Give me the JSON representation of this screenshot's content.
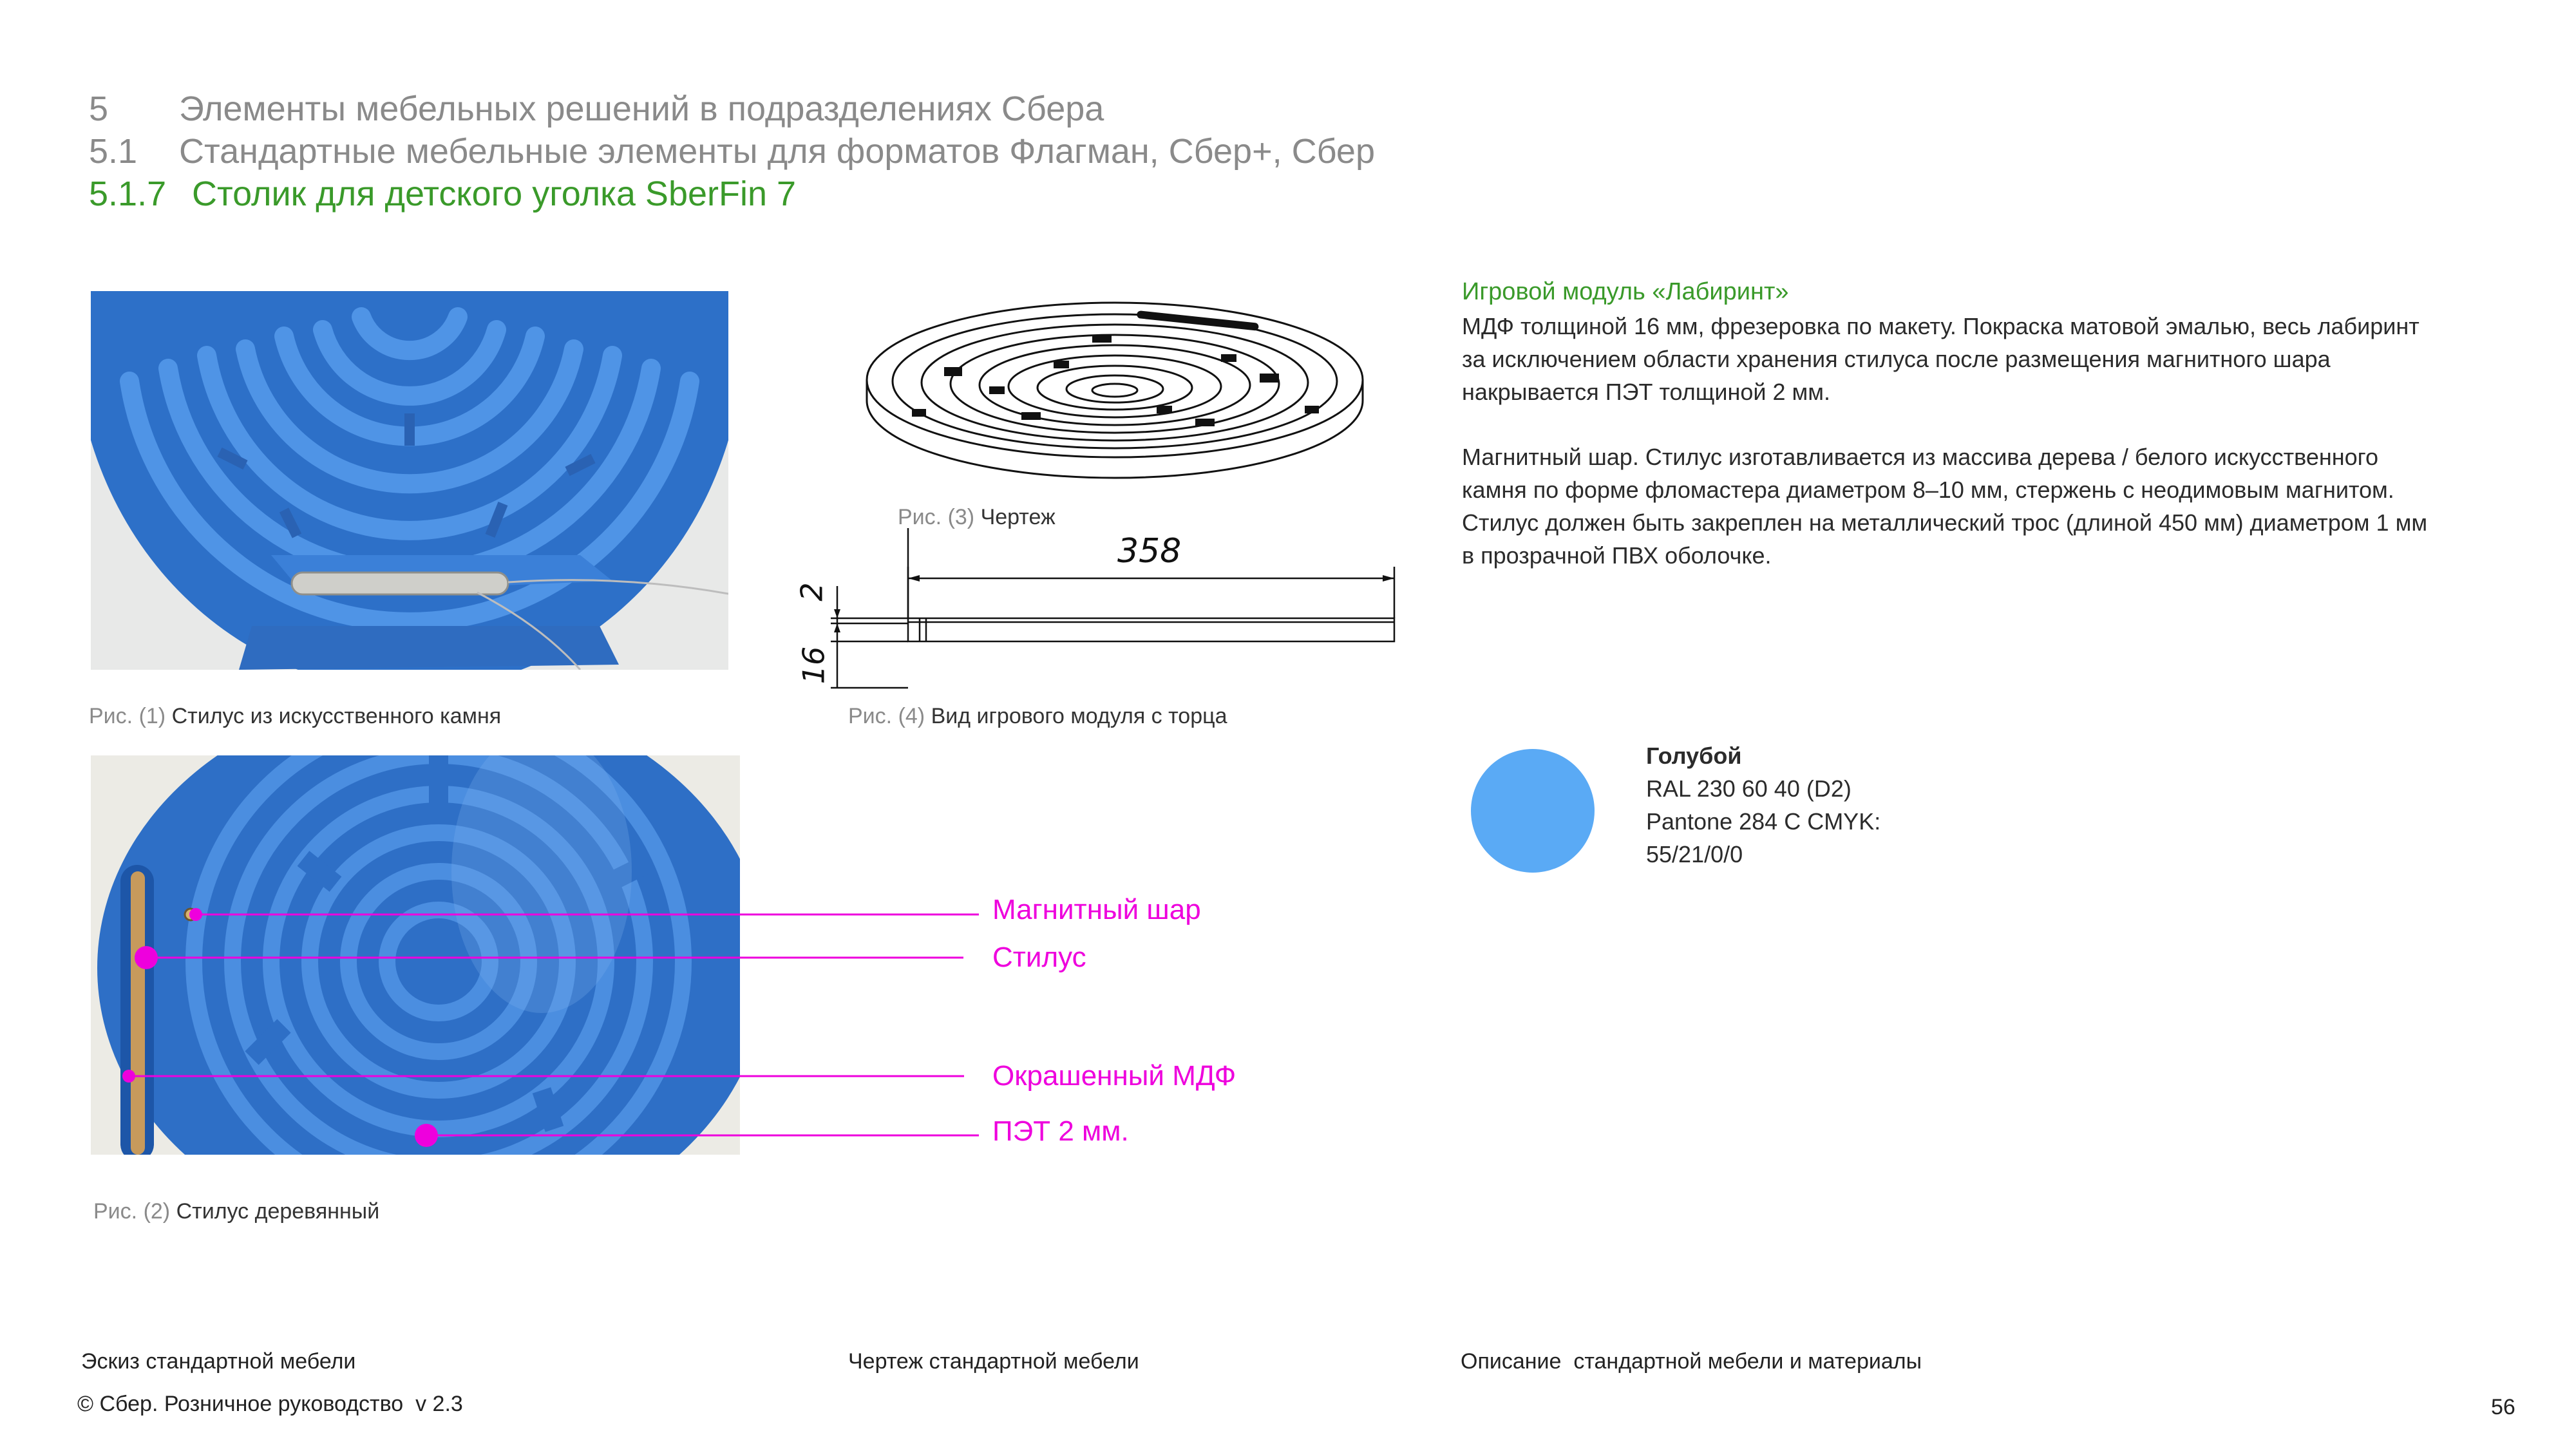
{
  "header": {
    "line1": {
      "num": "5",
      "text": "Элементы мебельных решений в подразделениях Сбера"
    },
    "line2": {
      "num": "5.1",
      "text": "Стандартные мебельные элементы для форматов Флагман, Сбер+, Сбер"
    },
    "line3": {
      "num": "5.1.7",
      "text": "Столик для детского уголка SberFin 7"
    }
  },
  "figures": {
    "fig1": {
      "prefix": "Рис. (1)",
      "caption": "Стилус из искусственного камня"
    },
    "fig2": {
      "prefix": "Рис. (2)",
      "caption": "Стилус деревянный"
    },
    "fig3": {
      "prefix": "Рис. (3)",
      "caption": "Чертеж"
    },
    "fig4": {
      "prefix": "Рис. (4)",
      "caption": "Вид игрового модуля с торца"
    }
  },
  "drawing": {
    "dim_width": "358",
    "dim_top": "2",
    "dim_thickness": "16"
  },
  "callouts": {
    "magnet": "Магнитный шар",
    "stylus": "Стилус",
    "mdf": "Окрашенный МДФ",
    "pet": "ПЭТ 2 мм."
  },
  "description": {
    "title": "Игровой модуль «Лабиринт»",
    "para1": "МДФ толщиной 16 мм, фрезеровка по макету. Покраска матовой эмалью, весь лабиринт за исключением области хранения стилуса после размещения магнитного шара накрывается ПЭТ толщиной 2 мм.",
    "para2": "Магнитный шар. Стилус изготавливается из массива дерева / белого искусственного камня по форме фломастера диаметром 8–10 мм, стержень с неодимовым магнитом. Стилус должен быть закреплен на металлический трос (длиной 450 мм) диаметром 1 мм в прозрачной ПВХ оболочке."
  },
  "color_swatch": {
    "name": "Голубой",
    "ral": "RAL 230 60 40 (D2)",
    "pantone": "Pantone 284 C CMYK:",
    "cmyk": "55/21/0/0",
    "hex": "#5aaaf5"
  },
  "footer": {
    "col1": "Эскиз стандартной мебели",
    "col2": "Чертеж стандартной мебели",
    "col3": "Описание  стандартной мебели и материалы",
    "copyright": "© Сбер. Розничное руководство  v 2.3",
    "page": "56"
  },
  "colors": {
    "accent_green": "#3a9a2a",
    "callout_magenta": "#ee00dd",
    "maze_blue": "#2f78d0"
  }
}
